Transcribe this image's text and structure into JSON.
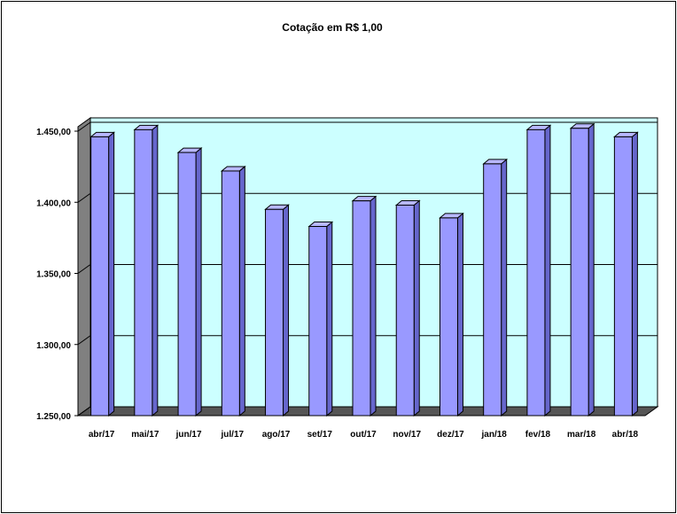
{
  "chart_data": {
    "type": "bar",
    "title": "Cotação em R$ 1,00",
    "xlabel": "",
    "ylabel": "",
    "categories": [
      "abr/17",
      "mai/17",
      "jun/17",
      "jul/17",
      "ago/17",
      "set/17",
      "out/17",
      "nov/17",
      "dez/17",
      "jan/18",
      "fev/18",
      "mar/18",
      "abr/18"
    ],
    "values": [
      1446,
      1451,
      1435,
      1422,
      1395,
      1383,
      1401,
      1398,
      1389,
      1427,
      1451,
      1452,
      1446
    ],
    "ylim": [
      1250,
      1450
    ],
    "yticks": [
      1250,
      1300,
      1350,
      1400,
      1450
    ],
    "ytick_labels": [
      "1.250,00",
      "1.300,00",
      "1.350,00",
      "1.400,00",
      "1.450,00"
    ],
    "grid": true,
    "legend": "none",
    "colors": {
      "bar_front": "#9999ff",
      "bar_side": "#6666cc",
      "bar_top": "#b8b8ff",
      "plot_back": "#ccffff",
      "plot_wall": "#808080",
      "plot_floor": "#555555",
      "gridline": "#000000"
    }
  }
}
